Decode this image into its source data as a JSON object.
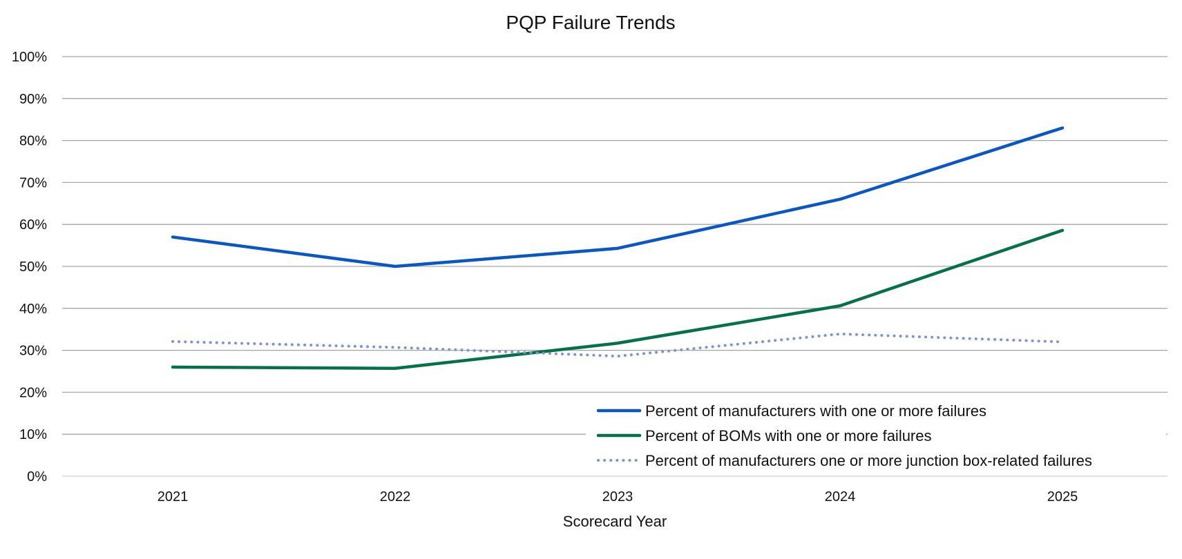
{
  "chart_data": {
    "type": "line",
    "title": "PQP Failure Trends",
    "xlabel": "Scorecard Year",
    "ylabel": "",
    "categories": [
      "2021",
      "2022",
      "2023",
      "2024",
      "2025"
    ],
    "y_ticks": [
      "0%",
      "10%",
      "20%",
      "30%",
      "40%",
      "50%",
      "60%",
      "70%",
      "80%",
      "90%",
      "100%"
    ],
    "ylim": [
      0,
      100
    ],
    "y_unit": "%",
    "grid": true,
    "legend_position": "bottom-right",
    "series": [
      {
        "name": "Percent of manufacturers with one or more failures",
        "values": [
          57,
          50,
          54.3,
          66,
          83
        ],
        "color": "#0a56c2",
        "style": "solid"
      },
      {
        "name": "Percent of BOMs with one or more failures",
        "values": [
          26,
          25.7,
          31.7,
          40.6,
          58.6
        ],
        "color": "#067049",
        "style": "solid"
      },
      {
        "name": "Percent of manufacturers one or more junction box-related failures",
        "values": [
          32.1,
          30.7,
          28.6,
          33.9,
          32
        ],
        "color": "#7f94cc",
        "style": "dotted"
      }
    ],
    "colors": {
      "grid": "#a6a6a6",
      "axis": "#d3d8e6",
      "text": "#111111"
    }
  }
}
